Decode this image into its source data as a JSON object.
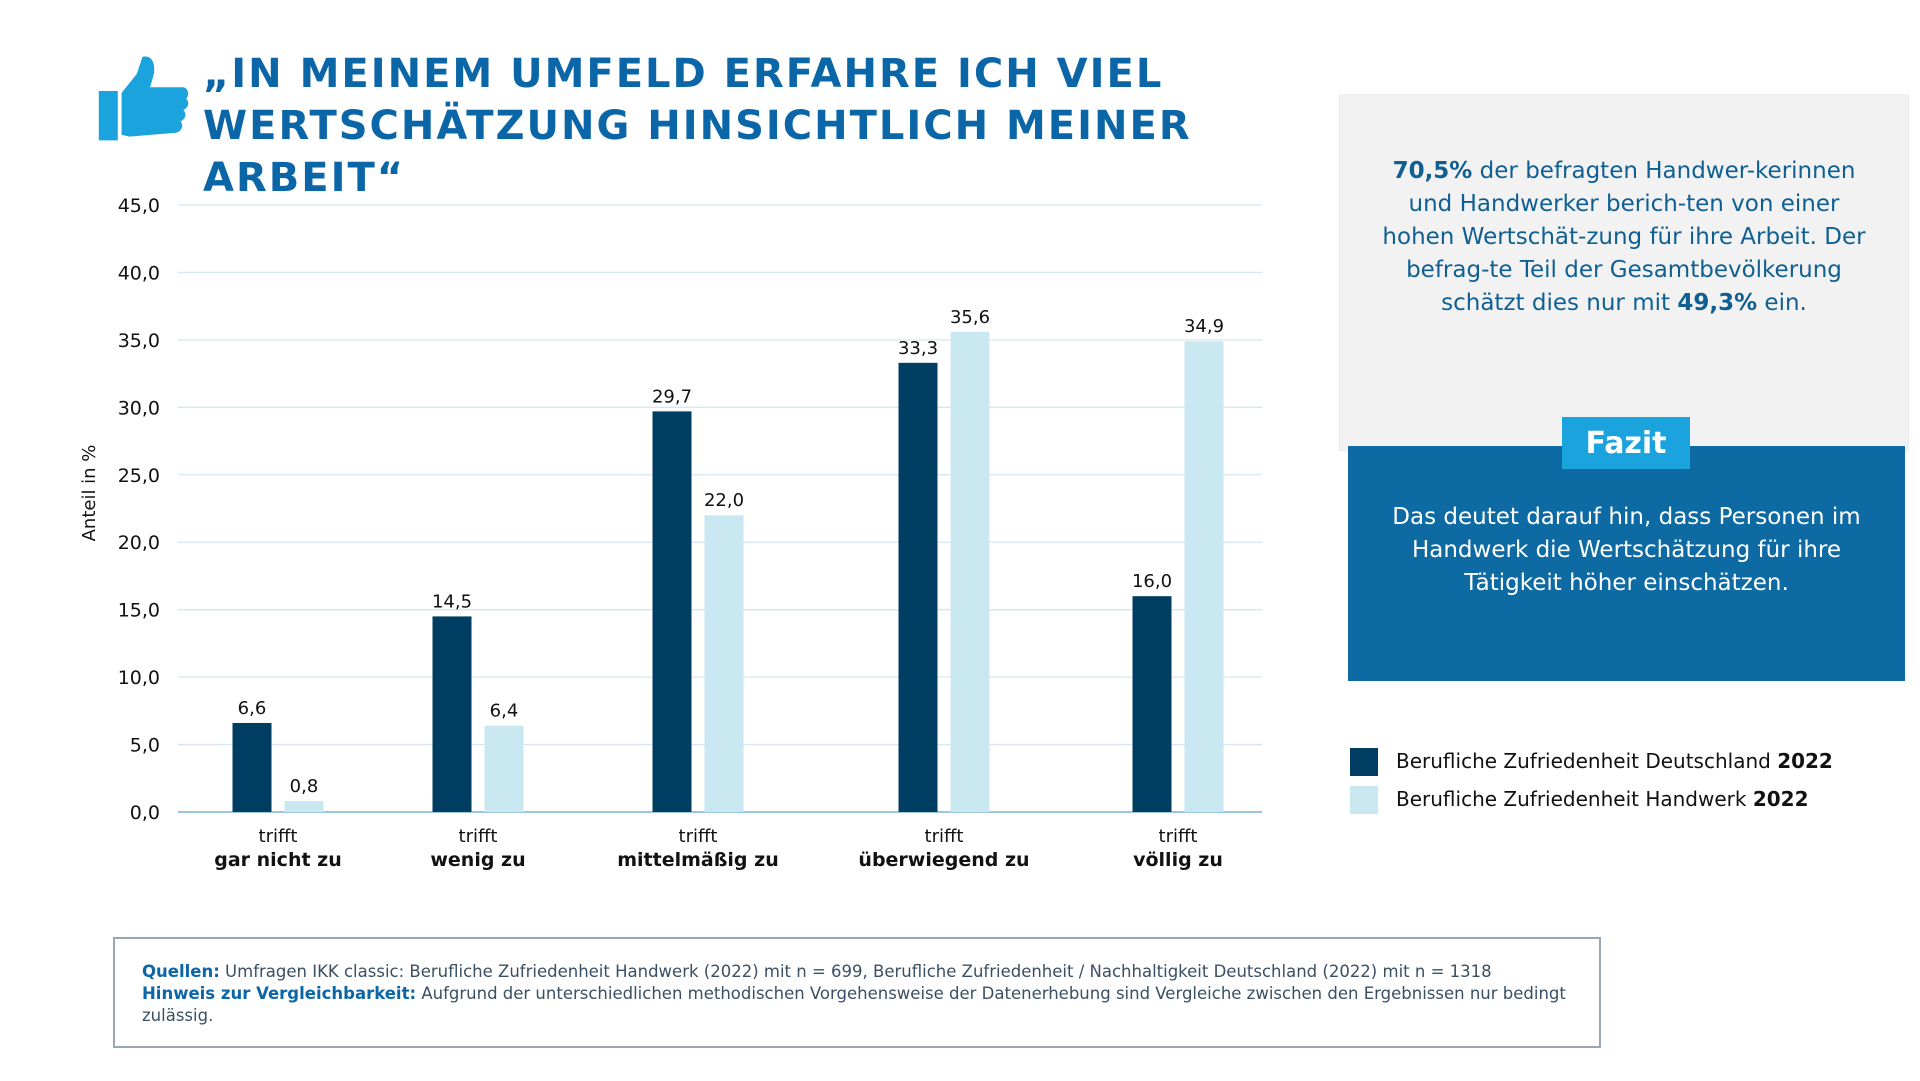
{
  "title": {
    "line1": "„In meinem Umfeld erfahre ich viel",
    "line2": "Wertschätzung hinsichtlich meiner Arbeit“"
  },
  "icons": {
    "title": "thumbs-up-icon"
  },
  "chart_data": {
    "type": "bar",
    "ylabel": "Anteil in %",
    "ylim": [
      0,
      45
    ],
    "yticks": [
      "0,0",
      "5,0",
      "10,0",
      "15,0",
      "20,0",
      "25,0",
      "30,0",
      "35,0",
      "40,0",
      "45,0"
    ],
    "grid": true,
    "categories": [
      {
        "line1": "trifft",
        "line2": "gar nicht zu"
      },
      {
        "line1": "trifft",
        "line2": "wenig zu"
      },
      {
        "line1": "trifft",
        "line2": "mittelmäßig zu"
      },
      {
        "line1": "trifft",
        "line2": "überwiegend zu"
      },
      {
        "line1": "trifft",
        "line2": "völlig zu"
      }
    ],
    "series": [
      {
        "name": "Berufliche Zufriedenheit Deutschland 2022",
        "color": "#003d63",
        "values": [
          6.6,
          14.5,
          29.7,
          33.3,
          16.0
        ],
        "labels": [
          "6,6",
          "14,5",
          "29,7",
          "33,3",
          "16,0"
        ]
      },
      {
        "name": "Berufliche Zufriedenheit Handwerk 2022",
        "color": "#c9e8f2",
        "values": [
          0.8,
          6.4,
          22.0,
          35.6,
          34.9
        ],
        "labels": [
          "0,8",
          "6,4",
          "22,0",
          "35,6",
          "34,9"
        ]
      }
    ]
  },
  "info": {
    "pct1": "70,5%",
    "text1": " der befragten Handwer-kerinnen und Handwerker berich-ten von einer hohen Wertschät-zung für ihre Arbeit. Der befrag-te Teil der Gesamtbevölkerung schätzt dies nur mit ",
    "pct2": "49,3%",
    "text2": " ein."
  },
  "fazit": {
    "badge": "Fazit",
    "text": "Das deutet darauf hin, dass Personen im Handwerk die Wertschätzung für ihre Tätigkeit höher einschätzen."
  },
  "legend": [
    {
      "label": "Berufliche Zufriedenheit Deutschland ",
      "year": "2022",
      "color": "#003d63"
    },
    {
      "label": "Berufliche Zufriedenheit Handwerk ",
      "year": "2022",
      "color": "#c9e8f2"
    }
  ],
  "sources": {
    "label1": "Quellen:",
    "text1": " Umfragen IKK classic: Berufliche Zufriedenheit Handwerk (2022) mit n = 699, Berufliche Zufriedenheit / Nachhaltigkeit Deutschland (2022) mit n = 1318",
    "label2": "Hinweis zur Vergleichbarkeit:",
    "text2": " Aufgrund der unterschiedlichen methodischen Vorgehensweise der Datenerhebung sind Vergleiche zwischen den Ergebnissen nur bedingt zulässig."
  }
}
